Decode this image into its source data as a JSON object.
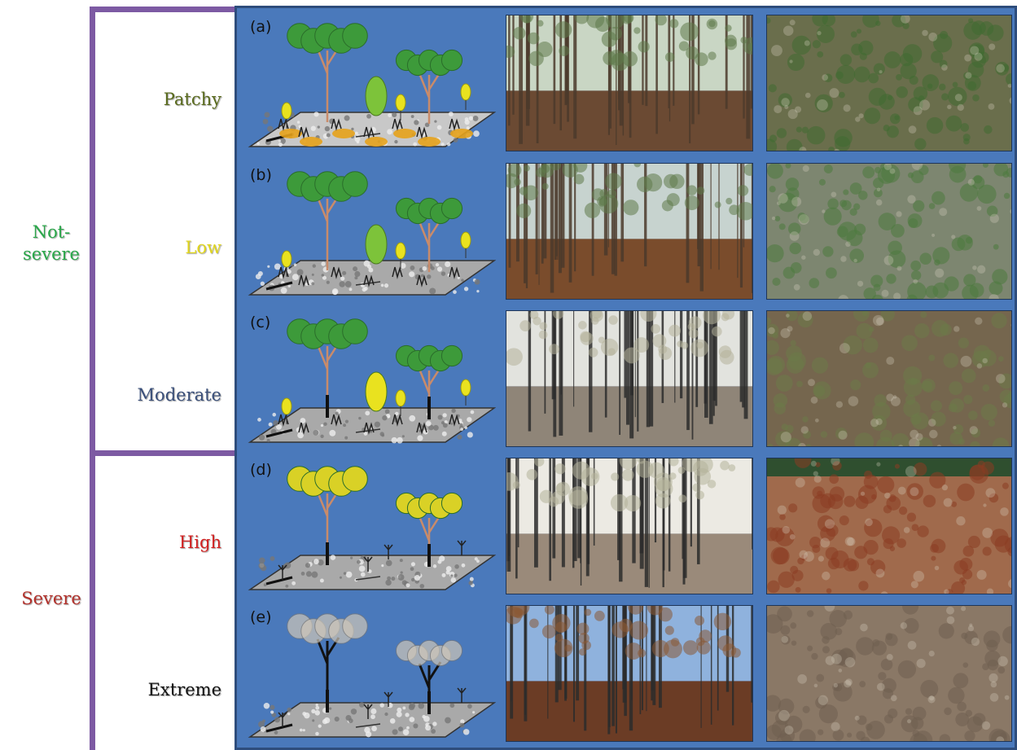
{
  "groups": [
    {
      "label": "Not-\nsevere",
      "color": "#2aa84a"
    },
    {
      "label": "Severe",
      "color": "#b2302a"
    }
  ],
  "rows": [
    {
      "letter": "(a)",
      "severity": "Patchy",
      "color": "#5a6b1e",
      "canopy": "#3d9a3a",
      "understory": "yellow",
      "ground": "light",
      "photo1": {
        "sky": "#c9d6c4",
        "ground": "#6b4a33"
      },
      "photo2": {
        "base": "#6a6e4c",
        "veg": "#3f6b31"
      }
    },
    {
      "letter": "(b)",
      "severity": "Low",
      "color": "#e1d61c",
      "canopy": "#3d9a3a",
      "understory": "yellow",
      "ground": "grey",
      "photo1": {
        "sky": "#c7d3cf",
        "ground": "#7a4c2c"
      },
      "photo2": {
        "base": "#7d8670",
        "veg": "#4d7a3e"
      }
    },
    {
      "letter": "(c)",
      "severity": "Moderate",
      "color": "#3a4f7a",
      "canopy": "#3d9a3a",
      "understory": "yellow",
      "ground": "grey",
      "photo1": {
        "sky": "#e2e3de",
        "ground": "#8f8578"
      },
      "photo2": {
        "base": "#75664e",
        "veg": "#6b7a48"
      }
    },
    {
      "letter": "(d)",
      "severity": "High",
      "color": "#d22222",
      "canopy": "#d9d126",
      "understory": "none",
      "ground": "grey",
      "photo1": {
        "sky": "#eceae3",
        "ground": "#9a8a7a"
      },
      "photo2": {
        "base": "#a06a4c",
        "veg": "#8a3d22"
      }
    },
    {
      "letter": "(e)",
      "severity": "Extreme",
      "color": "#111111",
      "canopy": "#cfc7b8",
      "understory": "none",
      "ground": "grey",
      "photo1": {
        "sky": "#8fb2dd",
        "ground": "#6b3c25"
      },
      "photo2": {
        "base": "#8a7866",
        "veg": "#6f5f50"
      }
    }
  ]
}
